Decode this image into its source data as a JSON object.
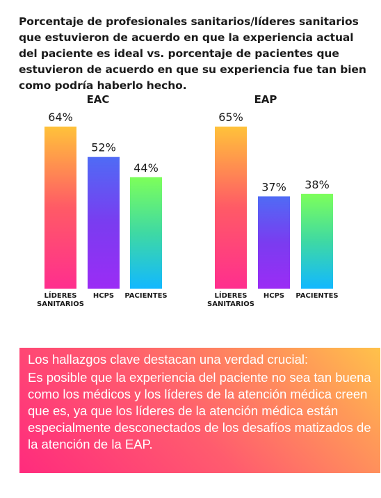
{
  "title": "Porcentaje de profesionales sanitarios/líderes sanitarios que estuvieron de acuerdo en que la experiencia actual del paciente es ideal vs. porcentaje de pacientes que estuvieron de acuerdo en que su experiencia fue tan bien como podría haberlo hecho.",
  "chart_data": [
    {
      "type": "bar",
      "title": "EAC",
      "categories": [
        [
          "LÍDERES",
          "SANITARIOS"
        ],
        [
          "HCPS"
        ],
        [
          "PACIENTES"
        ]
      ],
      "values": [
        64,
        52,
        44
      ],
      "value_labels": [
        "64%",
        "52%",
        "44%"
      ],
      "ylim": [
        0,
        64
      ],
      "bar_gradients": [
        [
          "#ffc23a",
          "#ff5a66",
          "#ff2e8e"
        ],
        [
          "#4f6bf5",
          "#7a3cf0",
          "#9b2cf5"
        ],
        [
          "#7dff5a",
          "#3fd9a3",
          "#12b8ff"
        ]
      ]
    },
    {
      "type": "bar",
      "title": "EAP",
      "categories": [
        [
          "LÍDERES",
          "SANITARIOS"
        ],
        [
          "HCPS"
        ],
        [
          "PACIENTES"
        ]
      ],
      "values": [
        65,
        37,
        38
      ],
      "value_labels": [
        "65%",
        "37%",
        "38%"
      ],
      "ylim": [
        0,
        65
      ],
      "bar_gradients": [
        [
          "#ffc23a",
          "#ff5a66",
          "#ff2e8e"
        ],
        [
          "#4f6bf5",
          "#7a3cf0",
          "#9b2cf5"
        ],
        [
          "#7dff5a",
          "#3fd9a3",
          "#12b8ff"
        ]
      ]
    }
  ],
  "callout": {
    "lead": "Los hallazgos clave destacan una verdad crucial:",
    "body": "Es posible que la experiencia del paciente no sea tan buena como los médicos y los líderes de la atención médica creen que es, ya que los líderes de la atención médica están especialmente desconectados de los desafíos matizados de la atención de la EAP."
  }
}
